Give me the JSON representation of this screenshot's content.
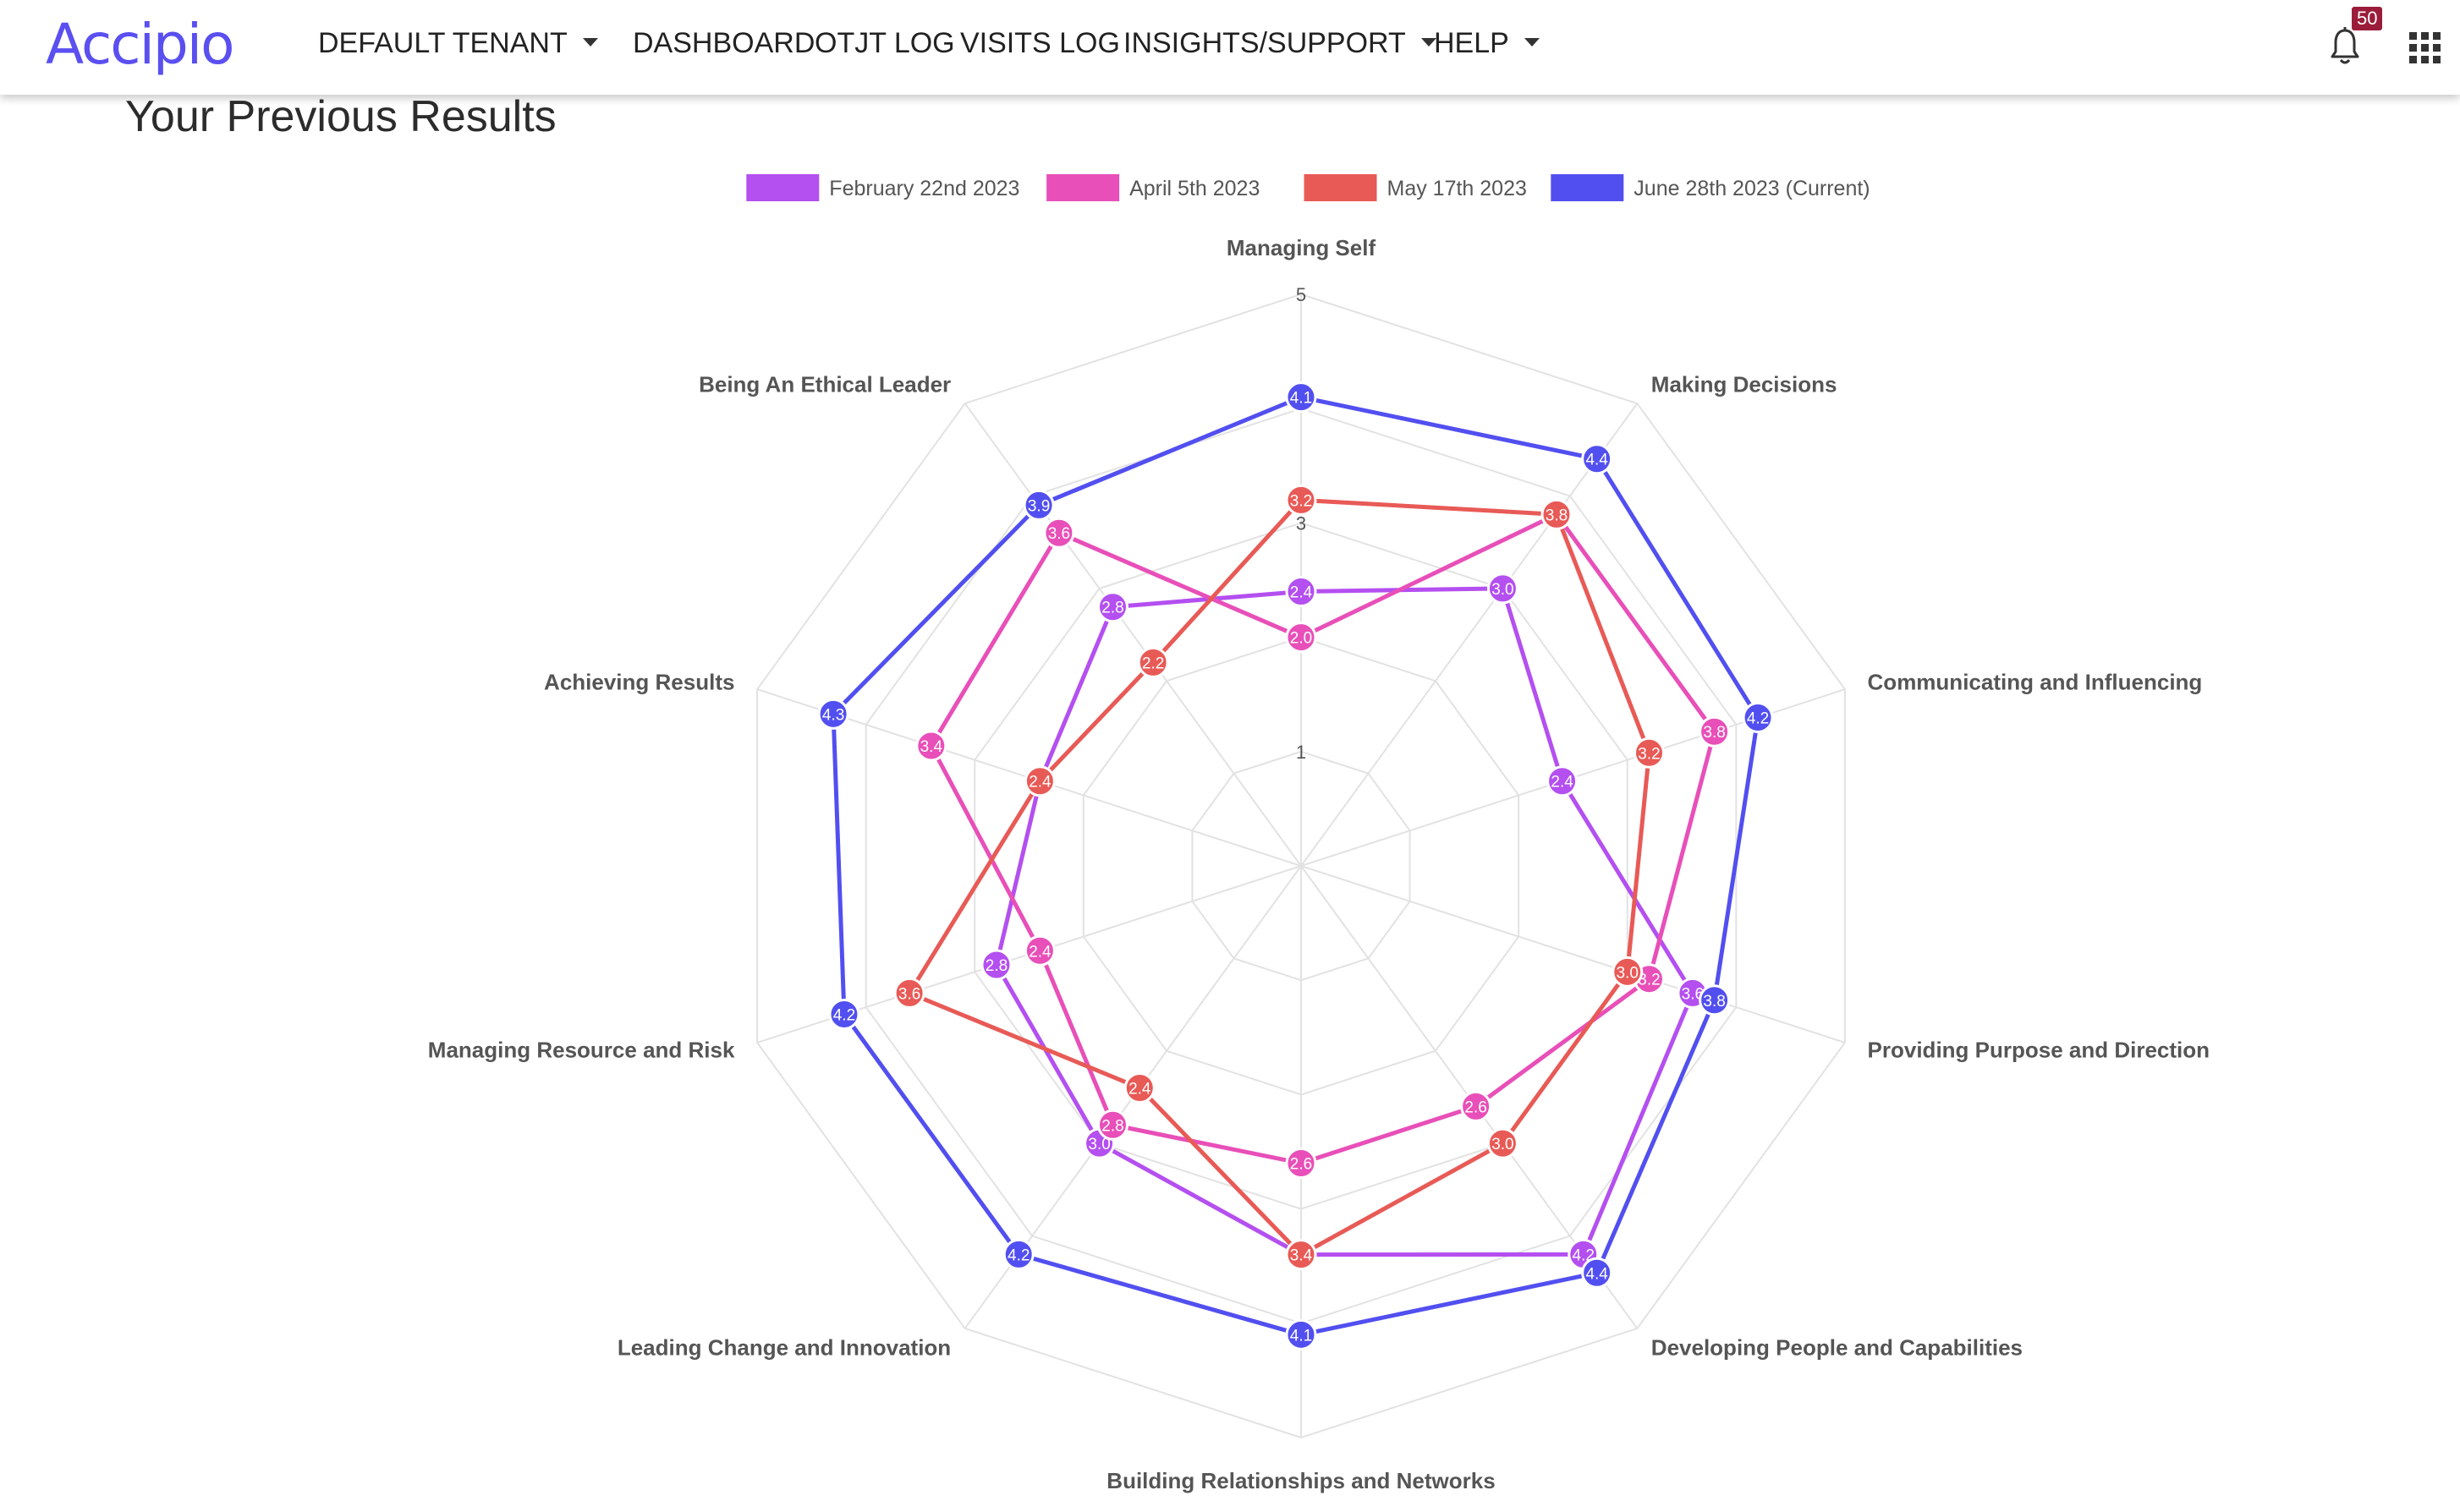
{
  "app": {
    "logo": "Accipio",
    "nav": [
      {
        "label": "DEFAULT TENANT",
        "dropdown": true
      },
      {
        "label": "DASHBOARD",
        "dropdown": false
      },
      {
        "label": "OTJT LOG",
        "dropdown": false
      },
      {
        "label": "VISITS LOG",
        "dropdown": false
      },
      {
        "label": "INSIGHTS/SUPPORT",
        "dropdown": true
      },
      {
        "label": "HELP",
        "dropdown": true
      }
    ],
    "notifications_count": "50",
    "icons": {
      "notifications": "bell-icon",
      "apps": "grid-icon",
      "dropdown": "caret-down-icon"
    },
    "brand_color": "#5a4ff0"
  },
  "page": {
    "title": "Your Previous Results"
  },
  "chart_data": {
    "type": "radar",
    "axes": [
      "Managing Self",
      "Making Decisions",
      "Communicating and Influencing",
      "Providing Purpose and Direction",
      "Developing People and Capabilities",
      "Building Relationships and Networks",
      "Leading Change and Innovation",
      "Managing Resource and Risk",
      "Achieving Results",
      "Being An Ethical Leader"
    ],
    "rlim": [
      0,
      5
    ],
    "ticks": [
      1,
      3,
      5
    ],
    "grid": true,
    "legend_position": "top",
    "series": [
      {
        "name": "February 22nd 2023",
        "color": "#b44ff0",
        "values": [
          2.4,
          3.0,
          2.4,
          3.6,
          4.2,
          3.4,
          3.0,
          2.8,
          2.4,
          2.8
        ]
      },
      {
        "name": "April 5th 2023",
        "color": "#e84fb8",
        "values": [
          2.0,
          3.8,
          3.8,
          3.2,
          2.6,
          2.6,
          2.8,
          2.4,
          3.4,
          3.6
        ]
      },
      {
        "name": "May 17th 2023",
        "color": "#e85a56",
        "values": [
          3.2,
          3.8,
          3.2,
          3.0,
          3.0,
          3.4,
          2.4,
          3.6,
          2.4,
          2.2
        ]
      },
      {
        "name": "June 28th 2023 (Current)",
        "color": "#524ff0",
        "values": [
          4.1,
          4.4,
          4.2,
          3.8,
          4.4,
          4.1,
          4.2,
          4.2,
          4.3,
          3.9
        ]
      }
    ]
  }
}
